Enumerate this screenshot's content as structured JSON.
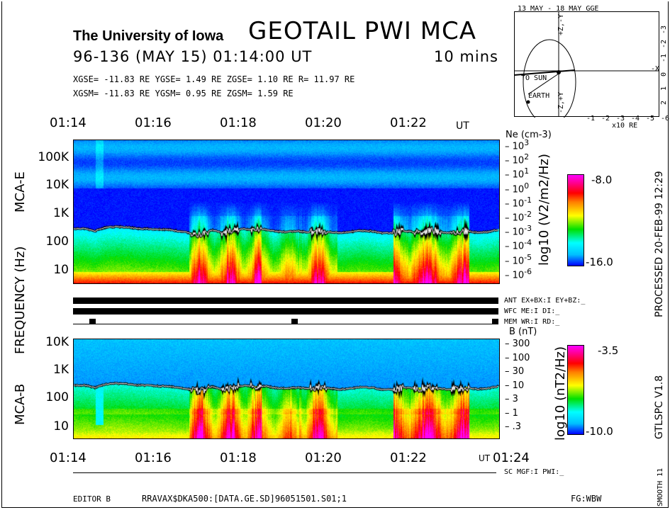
{
  "header": {
    "institution": "The University of Iowa",
    "title": "GEOTAIL PWI MCA",
    "datetime": "96-136 (MAY 15) 01:14:00 UT",
    "duration": "10 mins",
    "gse": "XGSE= -11.83 RE   YGSE=   1.49 RE   ZGSE=   1.10 RE   R= 11.97 RE",
    "gsm": "XGSM= -11.83 RE   YGSM=   0.95 RE   ZGSM=   1.59 RE"
  },
  "orbit": {
    "title": "13 MAY - 18 MAY  GGE",
    "x_ticks": [
      "-1",
      "-2",
      "-3",
      "-4",
      "-5",
      "-6"
    ],
    "y_ticks": [
      "-3",
      "-2",
      "-1",
      "0",
      "1",
      "2"
    ],
    "x_unit": "x10 RE",
    "label_sun": "TO SUN",
    "label_earth": "EARTH",
    "axis_y_top": "+Z,-Y",
    "axis_y_bottom": "-Z,+Y",
    "axis_x": "-X"
  },
  "chart_data": [
    {
      "type": "heatmap",
      "title": "MCA-E",
      "xlabel": "UT",
      "ylabel": "FREQUENCY (Hz)",
      "x_ticks": [
        "01:14",
        "01:16",
        "01:18",
        "01:20",
        "01:22"
      ],
      "y_ticks": [
        "100K",
        "10K",
        "1K",
        "100",
        "10"
      ],
      "yscale": "log",
      "ylim_hz": [
        5,
        400000
      ],
      "colorbar": {
        "label": "log10 (V2/m2/Hz)",
        "max": "-8.0",
        "min": "-16.0"
      },
      "right_axis": {
        "label": "Ne (cm-3)",
        "ticks": [
          "10^3",
          "10^2",
          "10^1",
          "10^0",
          "10^-1",
          "10^-2",
          "10^-3",
          "10^-4",
          "10^-5",
          "10^-6"
        ]
      },
      "cutoff_line_hz": [
        420,
        430,
        350,
        470,
        500,
        480,
        430,
        420,
        400,
        390,
        340,
        300,
        260,
        380,
        300,
        360,
        420,
        380,
        400,
        340,
        330,
        350,
        320,
        360,
        330,
        300,
        330,
        370,
        350,
        300,
        300,
        350,
        330,
        340,
        360,
        300,
        330,
        350,
        310,
        330,
        400
      ]
    },
    {
      "type": "heatmap",
      "title": "MCA-B",
      "xlabel": "UT",
      "x_ticks": [
        "01:14",
        "01:16",
        "01:18",
        "01:20",
        "01:22",
        "01:24"
      ],
      "y_ticks": [
        "10K",
        "1K",
        "100",
        "10"
      ],
      "yscale": "log",
      "ylim_hz": [
        5,
        15000
      ],
      "colorbar": {
        "label": "log10 (nT2/Hz)",
        "max": "-3.5",
        "min": "-10.0"
      },
      "right_axis": {
        "label": "B (nT)",
        "ticks": [
          "300",
          "100",
          "30",
          "10",
          "3",
          "1",
          ".3"
        ]
      }
    }
  ],
  "status": {
    "ant": "ANT EX+BX:I  EY+BZ:_",
    "wfc": "WFC ME:I     DI:_",
    "mem": "MEM WR:I     RD:_",
    "sc": "SC MGF:I   PWI:_"
  },
  "footer": {
    "editor": "EDITOR B",
    "file": "RRAVAX$DKA500:[DATA.GE.SD]96051501.S01;1",
    "fg": "FG:WBW",
    "ut_label": "UT",
    "processed": "PROCESSED 20-FEB-99   12:29",
    "version": "GTLSPC   V1.8",
    "smooth": "SMOOTH 11"
  }
}
